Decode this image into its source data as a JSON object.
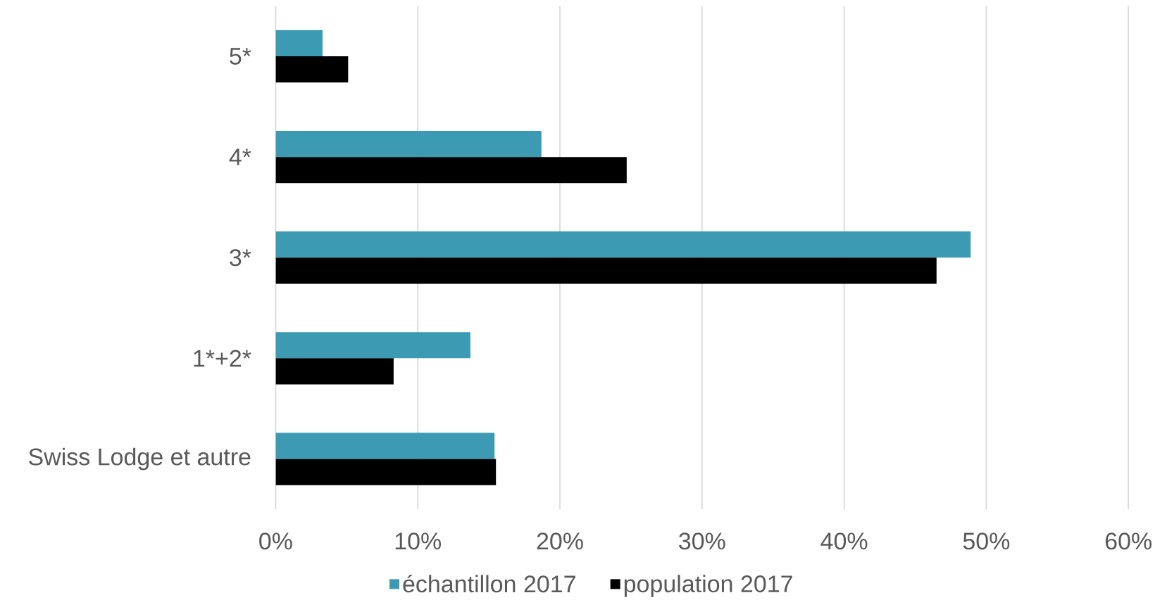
{
  "chart_data": {
    "type": "bar",
    "orientation": "horizontal",
    "categories": [
      "5*",
      "4*",
      "3*",
      "1*+2*",
      "Swiss Lodge et autre"
    ],
    "series": [
      {
        "name": "échantillon 2017",
        "color": "#3c9ab3",
        "values": [
          3.3,
          18.7,
          48.9,
          13.7,
          15.4
        ]
      },
      {
        "name": "population 2017",
        "color": "#000000",
        "values": [
          5.1,
          24.7,
          46.5,
          8.3,
          15.5
        ]
      }
    ],
    "xlim": [
      0,
      60
    ],
    "xticks": [
      {
        "value": 0,
        "label": "0%"
      },
      {
        "value": 10,
        "label": "10%"
      },
      {
        "value": 20,
        "label": "20%"
      },
      {
        "value": 30,
        "label": "30%"
      },
      {
        "value": 40,
        "label": "40%"
      },
      {
        "value": 50,
        "label": "50%"
      },
      {
        "value": 60,
        "label": "60%"
      }
    ],
    "grid": "x",
    "legend": "bottom"
  }
}
